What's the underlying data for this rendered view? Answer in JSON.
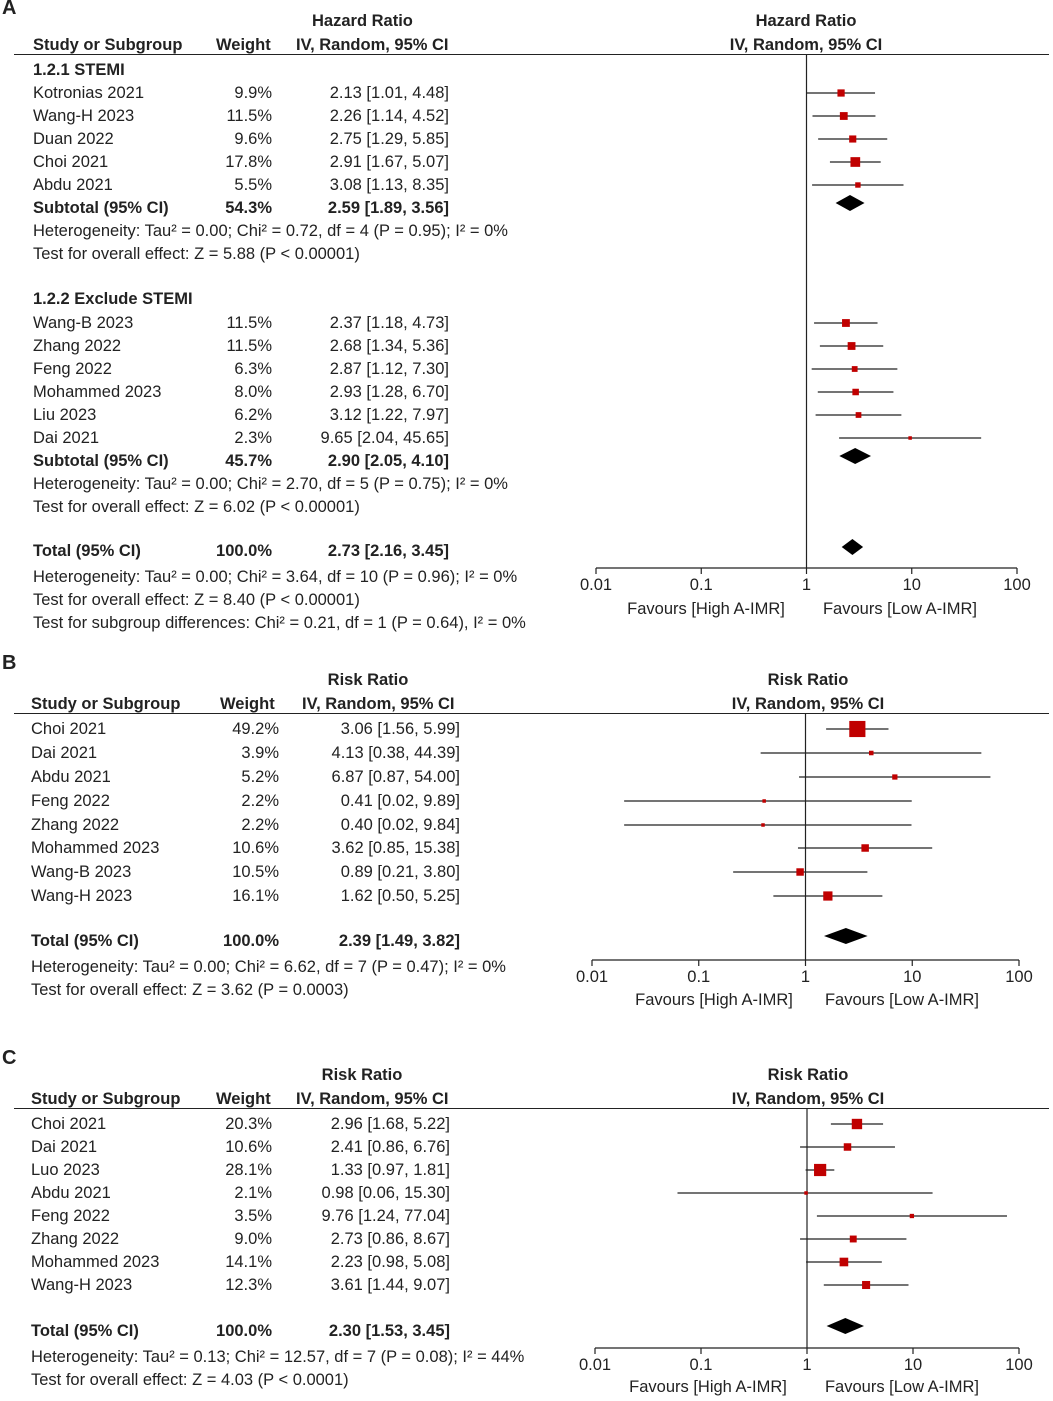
{
  "colors": {
    "marker": "#c00000",
    "line": "#222222",
    "diamond": "#000000"
  },
  "panels": [
    {
      "label": "A",
      "measure": "Hazard Ratio",
      "col_study": "Study or Subgroup",
      "col_weight": "Weight",
      "col_method": "IV, Random, 95% CI",
      "plot_title": "Hazard Ratio",
      "plot_method": "IV, Random, 95% CI",
      "favours_left": "Favours [High A-IMR]",
      "favours_right": "Favours [Low A-IMR]",
      "ticks": [
        "0.01",
        "0.1",
        "1",
        "10",
        "100"
      ],
      "subgroups": [
        {
          "name": "1.2.1 STEMI",
          "studies": [
            {
              "study": "Kotronias 2021",
              "weight": "9.9%",
              "ci_text": "2.13 [1.01, 4.48]",
              "est": 2.13,
              "lo": 1.01,
              "hi": 4.48,
              "w": 9.9
            },
            {
              "study": "Wang-H 2023",
              "weight": "11.5%",
              "ci_text": "2.26 [1.14, 4.52]",
              "est": 2.26,
              "lo": 1.14,
              "hi": 4.52,
              "w": 11.5
            },
            {
              "study": "Duan 2022",
              "weight": "9.6%",
              "ci_text": "2.75 [1.29, 5.85]",
              "est": 2.75,
              "lo": 1.29,
              "hi": 5.85,
              "w": 9.6
            },
            {
              "study": "Choi 2021",
              "weight": "17.8%",
              "ci_text": "2.91 [1.67, 5.07]",
              "est": 2.91,
              "lo": 1.67,
              "hi": 5.07,
              "w": 17.8
            },
            {
              "study": "Abdu 2021",
              "weight": "5.5%",
              "ci_text": "3.08 [1.13, 8.35]",
              "est": 3.08,
              "lo": 1.13,
              "hi": 8.35,
              "w": 5.5
            }
          ],
          "subtotal": {
            "label": "Subtotal (95% CI)",
            "weight": "54.3%",
            "ci_text": "2.59 [1.89, 3.56]",
            "est": 2.59,
            "lo": 1.89,
            "hi": 3.56
          },
          "heterogeneity": "Heterogeneity: Tau² = 0.00; Chi² = 0.72, df = 4 (P = 0.95); I² = 0%",
          "overall_effect": "Test for overall effect: Z = 5.88 (P < 0.00001)"
        },
        {
          "name": "1.2.2 Exclude STEMI",
          "studies": [
            {
              "study": "Wang-B 2023",
              "weight": "11.5%",
              "ci_text": "2.37 [1.18, 4.73]",
              "est": 2.37,
              "lo": 1.18,
              "hi": 4.73,
              "w": 11.5
            },
            {
              "study": "Zhang 2022",
              "weight": "11.5%",
              "ci_text": "2.68 [1.34, 5.36]",
              "est": 2.68,
              "lo": 1.34,
              "hi": 5.36,
              "w": 11.5
            },
            {
              "study": "Feng 2022",
              "weight": "6.3%",
              "ci_text": "2.87 [1.12, 7.30]",
              "est": 2.87,
              "lo": 1.12,
              "hi": 7.3,
              "w": 6.3
            },
            {
              "study": "Mohammed 2023",
              "weight": "8.0%",
              "ci_text": "2.93 [1.28, 6.70]",
              "est": 2.93,
              "lo": 1.28,
              "hi": 6.7,
              "w": 8.0
            },
            {
              "study": "Liu 2023",
              "weight": "6.2%",
              "ci_text": "3.12 [1.22, 7.97]",
              "est": 3.12,
              "lo": 1.22,
              "hi": 7.97,
              "w": 6.2
            },
            {
              "study": "Dai 2021",
              "weight": "2.3%",
              "ci_text": "9.65 [2.04, 45.65]",
              "est": 9.65,
              "lo": 2.04,
              "hi": 45.65,
              "w": 2.3
            }
          ],
          "subtotal": {
            "label": "Subtotal (95% CI)",
            "weight": "45.7%",
            "ci_text": "2.90 [2.05, 4.10]",
            "est": 2.9,
            "lo": 2.05,
            "hi": 4.1
          },
          "heterogeneity": "Heterogeneity: Tau² = 0.00; Chi² = 2.70, df = 5 (P = 0.75); I² = 0%",
          "overall_effect": "Test for overall effect: Z = 6.02 (P < 0.00001)"
        }
      ],
      "total": {
        "label": "Total (95% CI)",
        "weight": "100.0%",
        "ci_text": "2.73 [2.16, 3.45]",
        "est": 2.73,
        "lo": 2.16,
        "hi": 3.45
      },
      "footer": [
        "Heterogeneity: Tau² = 0.00; Chi² = 3.64, df = 10 (P = 0.96); I² = 0%",
        "Test for overall effect: Z = 8.40 (P < 0.00001)",
        "Test for subgroup differences: Chi² = 0.21, df = 1 (P = 0.64), I² = 0%"
      ]
    },
    {
      "label": "B",
      "measure": "Risk Ratio",
      "col_study": "Study or Subgroup",
      "col_weight": "Weight",
      "col_method": "IV, Random, 95% CI",
      "plot_title": "Risk Ratio",
      "plot_method": "IV, Random, 95% CI",
      "favours_left": "Favours [High A-IMR]",
      "favours_right": "Favours [Low A-IMR]",
      "ticks": [
        "0.01",
        "0.1",
        "1",
        "10",
        "100"
      ],
      "studies": [
        {
          "study": "Choi 2021",
          "weight": "49.2%",
          "ci_text": "3.06 [1.56, 5.99]",
          "est": 3.06,
          "lo": 1.56,
          "hi": 5.99,
          "w": 49.2
        },
        {
          "study": "Dai 2021",
          "weight": "3.9%",
          "ci_text": "4.13 [0.38, 44.39]",
          "est": 4.13,
          "lo": 0.38,
          "hi": 44.39,
          "w": 3.9
        },
        {
          "study": "Abdu 2021",
          "weight": "5.2%",
          "ci_text": "6.87 [0.87, 54.00]",
          "est": 6.87,
          "lo": 0.87,
          "hi": 54.0,
          "w": 5.2
        },
        {
          "study": "Feng 2022",
          "weight": "2.2%",
          "ci_text": "0.41 [0.02, 9.89]",
          "est": 0.41,
          "lo": 0.02,
          "hi": 9.89,
          "w": 2.2
        },
        {
          "study": "Zhang 2022",
          "weight": "2.2%",
          "ci_text": "0.40 [0.02, 9.84]",
          "est": 0.4,
          "lo": 0.02,
          "hi": 9.84,
          "w": 2.2
        },
        {
          "study": "Mohammed 2023",
          "weight": "10.6%",
          "ci_text": "3.62 [0.85, 15.38]",
          "est": 3.62,
          "lo": 0.85,
          "hi": 15.38,
          "w": 10.6
        },
        {
          "study": "Wang-B 2023",
          "weight": "10.5%",
          "ci_text": "0.89 [0.21, 3.80]",
          "est": 0.89,
          "lo": 0.21,
          "hi": 3.8,
          "w": 10.5
        },
        {
          "study": "Wang-H 2023",
          "weight": "16.1%",
          "ci_text": "1.62 [0.50, 5.25]",
          "est": 1.62,
          "lo": 0.5,
          "hi": 5.25,
          "w": 16.1
        }
      ],
      "total": {
        "label": "Total (95% CI)",
        "weight": "100.0%",
        "ci_text": "2.39 [1.49, 3.82]",
        "est": 2.39,
        "lo": 1.49,
        "hi": 3.82
      },
      "footer": [
        "Heterogeneity: Tau² = 0.00; Chi² = 6.62, df = 7 (P = 0.47); I² = 0%",
        "Test for overall effect: Z = 3.62 (P = 0.0003)"
      ]
    },
    {
      "label": "C",
      "measure": "Risk Ratio",
      "col_study": "Study or Subgroup",
      "col_weight": "Weight",
      "col_method": "IV, Random, 95% CI",
      "plot_title": "Risk Ratio",
      "plot_method": "IV, Random, 95% CI",
      "favours_left": "Favours [High A-IMR]",
      "favours_right": "Favours [Low A-IMR]",
      "ticks": [
        "0.01",
        "0.1",
        "1",
        "10",
        "100"
      ],
      "studies": [
        {
          "study": "Choi 2021",
          "weight": "20.3%",
          "ci_text": "2.96 [1.68, 5.22]",
          "est": 2.96,
          "lo": 1.68,
          "hi": 5.22,
          "w": 20.3
        },
        {
          "study": "Dai 2021",
          "weight": "10.6%",
          "ci_text": "2.41 [0.86, 6.76]",
          "est": 2.41,
          "lo": 0.86,
          "hi": 6.76,
          "w": 10.6
        },
        {
          "study": "Luo 2023",
          "weight": "28.1%",
          "ci_text": "1.33 [0.97, 1.81]",
          "est": 1.33,
          "lo": 0.97,
          "hi": 1.81,
          "w": 28.1
        },
        {
          "study": "Abdu 2021",
          "weight": "2.1%",
          "ci_text": "0.98 [0.06, 15.30]",
          "est": 0.98,
          "lo": 0.06,
          "hi": 15.3,
          "w": 2.1
        },
        {
          "study": "Feng 2022",
          "weight": "3.5%",
          "ci_text": "9.76 [1.24, 77.04]",
          "est": 9.76,
          "lo": 1.24,
          "hi": 77.04,
          "w": 3.5
        },
        {
          "study": "Zhang 2022",
          "weight": "9.0%",
          "ci_text": "2.73 [0.86, 8.67]",
          "est": 2.73,
          "lo": 0.86,
          "hi": 8.67,
          "w": 9.0
        },
        {
          "study": "Mohammed 2023",
          "weight": "14.1%",
          "ci_text": "2.23 [0.98, 5.08]",
          "est": 2.23,
          "lo": 0.98,
          "hi": 5.08,
          "w": 14.1
        },
        {
          "study": "Wang-H 2023",
          "weight": "12.3%",
          "ci_text": "3.61 [1.44, 9.07]",
          "est": 3.61,
          "lo": 1.44,
          "hi": 9.07,
          "w": 12.3
        }
      ],
      "total": {
        "label": "Total (95% CI)",
        "weight": "100.0%",
        "ci_text": "2.30 [1.53, 3.45]",
        "est": 2.3,
        "lo": 1.53,
        "hi": 3.45
      },
      "footer": [
        "Heterogeneity: Tau² = 0.13; Chi² = 12.57, df = 7 (P = 0.08); I² = 44%",
        "Test for overall effect: Z = 4.03 (P < 0.0001)"
      ]
    }
  ],
  "chart_data": [
    {
      "type": "forest",
      "title": "Hazard Ratio",
      "scale": "log",
      "xlim": [
        0.01,
        100
      ],
      "ticks": [
        0.01,
        0.1,
        1,
        10,
        100
      ],
      "xlabel_left": "Favours [High A-IMR]",
      "xlabel_right": "Favours [Low A-IMR]",
      "series": [
        {
          "name": "1.2.1 STEMI",
          "studies": [
            "Kotronias 2021",
            "Wang-H 2023",
            "Duan 2022",
            "Choi 2021",
            "Abdu 2021"
          ],
          "estimates": [
            2.13,
            2.26,
            2.75,
            2.91,
            3.08
          ],
          "subtotal": [
            2.59,
            1.89,
            3.56
          ]
        },
        {
          "name": "1.2.2 Exclude STEMI",
          "studies": [
            "Wang-B 2023",
            "Zhang 2022",
            "Feng 2022",
            "Mohammed 2023",
            "Liu 2023",
            "Dai 2021"
          ],
          "estimates": [
            2.37,
            2.68,
            2.87,
            2.93,
            3.12,
            9.65
          ],
          "subtotal": [
            2.9,
            2.05,
            4.1
          ]
        }
      ],
      "total": [
        2.73,
        2.16,
        3.45
      ]
    },
    {
      "type": "forest",
      "title": "Risk Ratio",
      "scale": "log",
      "xlim": [
        0.01,
        100
      ],
      "ticks": [
        0.01,
        0.1,
        1,
        10,
        100
      ],
      "studies": [
        "Choi 2021",
        "Dai 2021",
        "Abdu 2021",
        "Feng 2022",
        "Zhang 2022",
        "Mohammed 2023",
        "Wang-B 2023",
        "Wang-H 2023"
      ],
      "estimates": [
        3.06,
        4.13,
        6.87,
        0.41,
        0.4,
        3.62,
        0.89,
        1.62
      ],
      "total": [
        2.39,
        1.49,
        3.82
      ]
    },
    {
      "type": "forest",
      "title": "Risk Ratio",
      "scale": "log",
      "xlim": [
        0.01,
        100
      ],
      "ticks": [
        0.01,
        0.1,
        1,
        10,
        100
      ],
      "studies": [
        "Choi 2021",
        "Dai 2021",
        "Luo 2023",
        "Abdu 2021",
        "Feng 2022",
        "Zhang 2022",
        "Mohammed 2023",
        "Wang-H 2023"
      ],
      "estimates": [
        2.96,
        2.41,
        1.33,
        0.98,
        9.76,
        2.73,
        2.23,
        3.61
      ],
      "total": [
        2.3,
        1.53,
        3.45
      ]
    }
  ]
}
